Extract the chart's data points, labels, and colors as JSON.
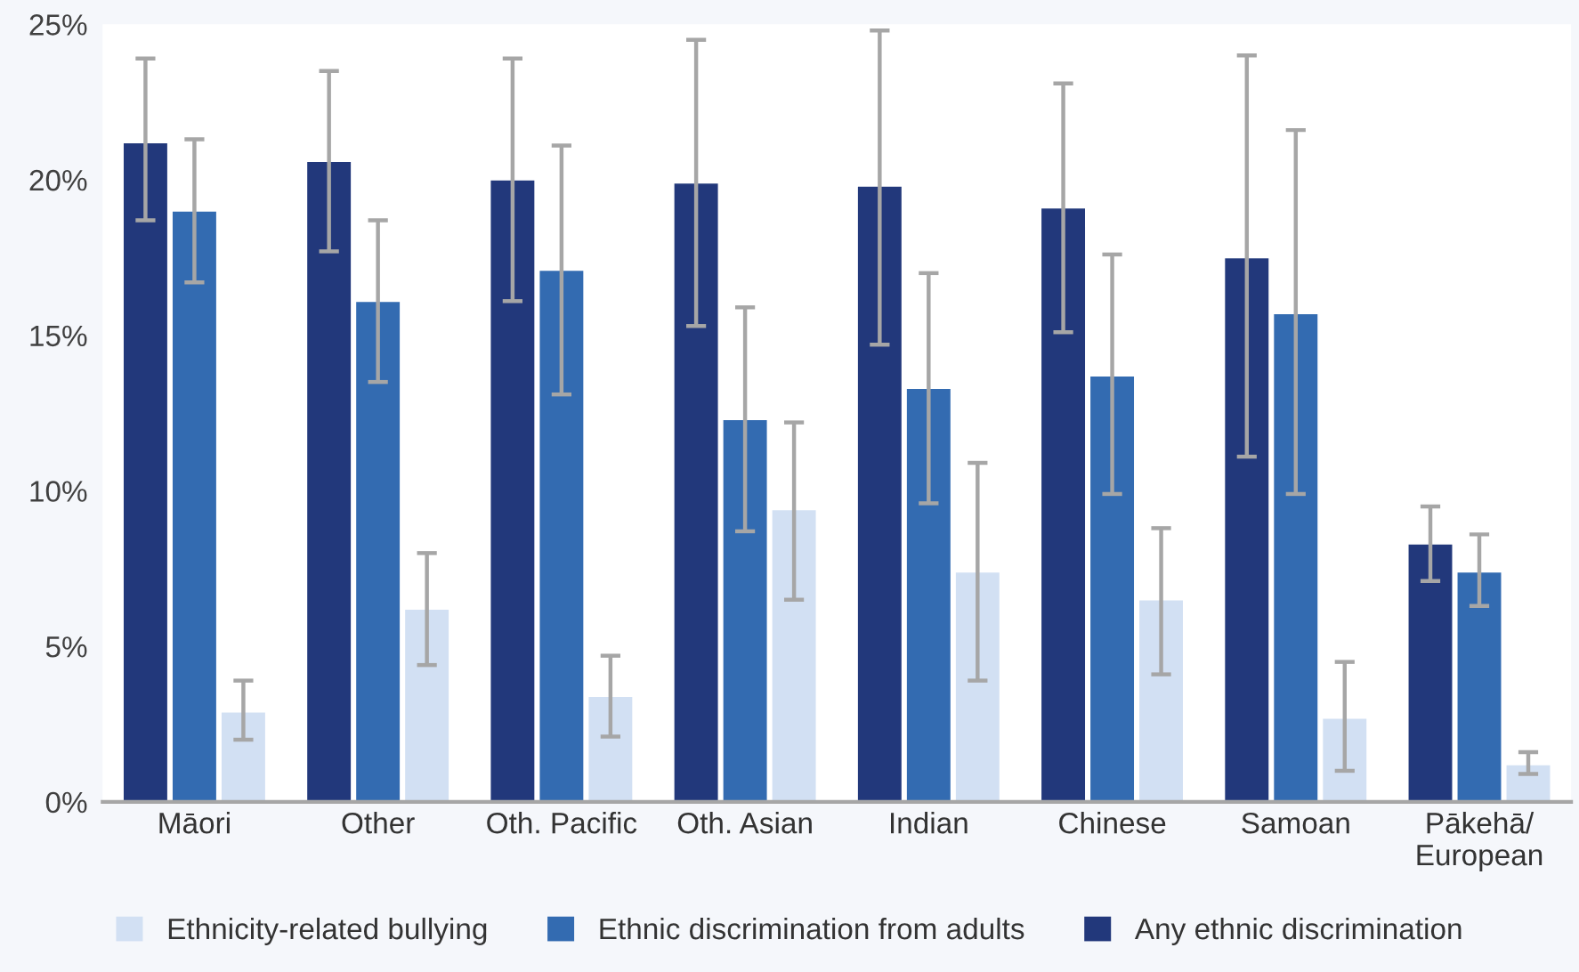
{
  "chart_data": {
    "type": "bar",
    "categories": [
      "Māori",
      "Other",
      "Oth. Pacific",
      "Oth. Asian",
      "Indian",
      "Chinese",
      "Samoan",
      "Pākehā/\nEuropean"
    ],
    "series": [
      {
        "name": "Any ethnic discrimination",
        "color": "#22387b",
        "values": [
          21.2,
          20.6,
          20.0,
          19.9,
          19.8,
          19.1,
          17.5,
          8.3
        ],
        "errors": [
          [
            18.7,
            23.9
          ],
          [
            17.7,
            23.5
          ],
          [
            16.1,
            23.9
          ],
          [
            15.3,
            24.5
          ],
          [
            14.7,
            24.8
          ],
          [
            15.1,
            23.1
          ],
          [
            11.1,
            24.0
          ],
          [
            7.1,
            9.5
          ]
        ]
      },
      {
        "name": "Ethnic discrimination from adults",
        "color": "#336bb1",
        "values": [
          19.0,
          16.1,
          17.1,
          12.3,
          13.3,
          13.7,
          15.7,
          7.4
        ],
        "errors": [
          [
            16.7,
            21.3
          ],
          [
            13.5,
            18.7
          ],
          [
            13.1,
            21.1
          ],
          [
            8.7,
            15.9
          ],
          [
            9.6,
            17.0
          ],
          [
            9.9,
            17.6
          ],
          [
            9.9,
            21.6
          ],
          [
            6.3,
            8.6
          ]
        ]
      },
      {
        "name": "Ethnicity-related bullying",
        "color": "#d2e0f3",
        "values": [
          2.9,
          6.2,
          3.4,
          9.4,
          7.4,
          6.5,
          2.7,
          1.2
        ],
        "errors": [
          [
            2.0,
            3.9
          ],
          [
            4.4,
            8.0
          ],
          [
            2.1,
            4.7
          ],
          [
            6.5,
            12.2
          ],
          [
            3.9,
            10.9
          ],
          [
            4.1,
            8.8
          ],
          [
            1.0,
            4.5
          ],
          [
            0.9,
            1.6
          ]
        ]
      }
    ],
    "ylim": [
      0,
      25
    ],
    "yticks": [
      {
        "value": 0,
        "label": "0%"
      },
      {
        "value": 5,
        "label": "5%"
      },
      {
        "value": 10,
        "label": "10%"
      },
      {
        "value": 15,
        "label": "15%"
      },
      {
        "value": 20,
        "label": "20%"
      },
      {
        "value": 25,
        "label": "25%"
      }
    ],
    "grid": false,
    "legend": "bottom"
  }
}
